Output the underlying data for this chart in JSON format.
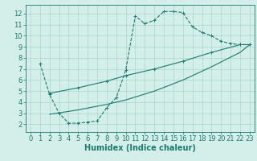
{
  "line1_x": [
    1,
    2,
    3,
    4,
    5,
    6,
    7,
    8,
    9,
    10,
    11,
    12,
    13,
    14,
    15,
    16,
    17,
    18,
    19,
    20,
    21,
    22,
    23
  ],
  "line1_y": [
    7.5,
    4.7,
    3.0,
    2.1,
    2.1,
    2.2,
    2.3,
    3.5,
    4.4,
    6.9,
    11.8,
    11.1,
    11.4,
    12.2,
    12.2,
    12.1,
    10.8,
    10.3,
    10.0,
    9.5,
    9.3,
    9.2,
    9.2
  ],
  "line1_markers_x": [
    1,
    2,
    3,
    4,
    5,
    6,
    7,
    8,
    9,
    10,
    11,
    12,
    13,
    14,
    15,
    16,
    17,
    18,
    19,
    20,
    21,
    22,
    23
  ],
  "line2_x": [
    2,
    5,
    8,
    10,
    13,
    16,
    19,
    22,
    23
  ],
  "line2_y": [
    4.8,
    5.3,
    5.9,
    6.4,
    7.0,
    7.7,
    8.5,
    9.2,
    9.2
  ],
  "line3_x": [
    2,
    5,
    8,
    10,
    13,
    16,
    19,
    22,
    23
  ],
  "line3_y": [
    2.9,
    3.3,
    3.8,
    4.2,
    5.0,
    6.0,
    7.2,
    8.5,
    9.2
  ],
  "color": "#1a7a6e",
  "bg_color": "#d4eeea",
  "grid_color": "#a8d5ce",
  "xlabel": "Humidex (Indice chaleur)",
  "xlim": [
    -0.5,
    23.5
  ],
  "ylim": [
    1.3,
    12.8
  ],
  "xticks": [
    0,
    1,
    2,
    3,
    4,
    5,
    6,
    7,
    8,
    9,
    10,
    11,
    12,
    13,
    14,
    15,
    16,
    17,
    18,
    19,
    20,
    21,
    22,
    23
  ],
  "yticks": [
    2,
    3,
    4,
    5,
    6,
    7,
    8,
    9,
    10,
    11,
    12
  ],
  "xlabel_fontsize": 7.0,
  "tick_fontsize": 6.0
}
